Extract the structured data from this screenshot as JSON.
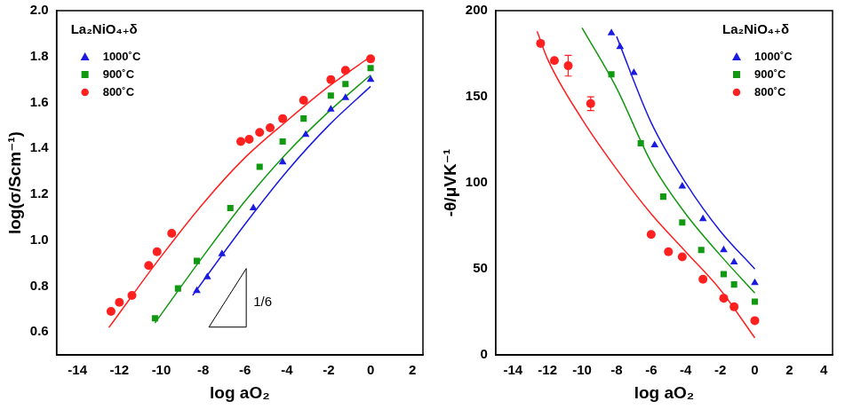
{
  "chart_data": [
    {
      "type": "scatter",
      "x_label": "log aO₂",
      "y_label": "log(σ/Scm⁻¹)",
      "xlim": [
        -15,
        2.5
      ],
      "xticks": [
        -14,
        -12,
        -10,
        -8,
        -6,
        -4,
        -2,
        0,
        2
      ],
      "ylim": [
        0.5,
        2.0
      ],
      "yticks": [
        0.6,
        0.8,
        {
          "value": 1.0,
          "label": "1.0"
        },
        1.2,
        1.4,
        1.6,
        1.8,
        {
          "value": 2.0,
          "label": "2.0"
        }
      ],
      "grid": false,
      "legend": "upper left",
      "legend_title": "La₂NiO₄₊δ",
      "annotations": [
        {
          "text": "1/6",
          "x": -5.6,
          "y": 0.73
        }
      ],
      "series": [
        {
          "name": "1000˚C",
          "color": "#1a1ae0",
          "marker": "triangle",
          "x": [
            -8.3,
            -7.8,
            -7.1,
            -5.6,
            -4.2,
            -3.1,
            -1.9,
            -1.2,
            0
          ],
          "values": [
            0.78,
            0.84,
            0.94,
            1.14,
            1.34,
            1.46,
            1.57,
            1.62,
            1.7
          ],
          "fit": {
            "x": [
              -8.5,
              -6,
              -4,
              -2,
              0
            ],
            "values": [
              0.76,
              1.07,
              1.3,
              1.5,
              1.67
            ]
          }
        },
        {
          "name": "900˚C",
          "color": "#119911",
          "marker": "square",
          "x": [
            -10.3,
            -9.2,
            -8.3,
            -6.7,
            -5.3,
            -4.2,
            -3.2,
            -1.9,
            -1.2,
            0
          ],
          "values": [
            0.66,
            0.79,
            0.91,
            1.14,
            1.32,
            1.43,
            1.53,
            1.63,
            1.68,
            1.75
          ],
          "fit": {
            "x": [
              -10.3,
              -8,
              -6,
              -4,
              -2,
              0
            ],
            "values": [
              0.64,
              0.93,
              1.17,
              1.38,
              1.56,
              1.72
            ]
          }
        },
        {
          "name": "800˚C",
          "color": "#ff2020",
          "marker": "circle",
          "x": [
            -12.4,
            -12,
            -11.4,
            -10.6,
            -10.2,
            -9.5,
            -6.2,
            -5.8,
            -5.3,
            -4.8,
            -4.2,
            -3.2,
            -1.9,
            -1.2,
            0
          ],
          "values": [
            0.69,
            0.73,
            0.76,
            0.89,
            0.95,
            1.03,
            1.43,
            1.44,
            1.47,
            1.49,
            1.53,
            1.61,
            1.7,
            1.74,
            1.79
          ],
          "fit": {
            "x": [
              -12.5,
              -10,
              -8,
              -6,
              -4,
              -2,
              0
            ],
            "values": [
              0.62,
              0.93,
              1.16,
              1.36,
              1.52,
              1.67,
              1.8
            ]
          }
        }
      ]
    },
    {
      "type": "scatter",
      "x_label": "log aO₂",
      "y_label": "-θ/μVK⁻¹",
      "xlim": [
        -15,
        4.5
      ],
      "xticks": [
        -14,
        -12,
        -10,
        -8,
        -6,
        -4,
        -2,
        0,
        2,
        4
      ],
      "ylim": [
        0,
        200
      ],
      "yticks": [
        0,
        50,
        100,
        150,
        200
      ],
      "grid": false,
      "legend": "upper right",
      "legend_title": "La₂NiO₄₊δ",
      "series": [
        {
          "name": "1000˚C",
          "color": "#1a1ae0",
          "marker": "triangle",
          "x": [
            -8.3,
            -7.8,
            -7.0,
            -5.8,
            -4.2,
            -3.0,
            -1.8,
            -1.2,
            0
          ],
          "values": [
            187,
            179,
            164,
            122,
            98,
            79,
            61,
            54,
            42
          ],
          "fit": {
            "x": [
              -8,
              -6,
              -4,
              -2,
              0
            ],
            "values": [
              185,
              135,
              100,
              72,
              50
            ]
          }
        },
        {
          "name": "900˚C",
          "color": "#119911",
          "marker": "square",
          "x": [
            -8.3,
            -6.6,
            -5.3,
            -4.2,
            -3.1,
            -1.8,
            -1.2,
            0
          ],
          "values": [
            163,
            123,
            92,
            77,
            61,
            47,
            41,
            31
          ],
          "fit": {
            "x": [
              -10,
              -8,
              -6,
              -4,
              -2,
              0
            ],
            "values": [
              190,
              155,
              112,
              82,
              58,
              36
            ]
          }
        },
        {
          "name": "800˚C",
          "color": "#ff2020",
          "marker": "circle",
          "x": [
            -12.4,
            -11.6,
            -10.8,
            -9.5,
            -6.0,
            -5.0,
            -4.2,
            -3.0,
            -1.8,
            -1.2,
            0
          ],
          "values": [
            181,
            171,
            168,
            146,
            70,
            60,
            57,
            44,
            33,
            28,
            20
          ],
          "errors": [
            null,
            null,
            6,
            4,
            null,
            null,
            null,
            null,
            null,
            null,
            null
          ],
          "fit": {
            "x": [
              -12.6,
              -12,
              -10,
              -8,
              -6,
              -4,
              -2,
              0
            ],
            "values": [
              188,
              172,
              137,
              108,
              82,
              60,
              38,
              10
            ]
          }
        }
      ]
    }
  ]
}
